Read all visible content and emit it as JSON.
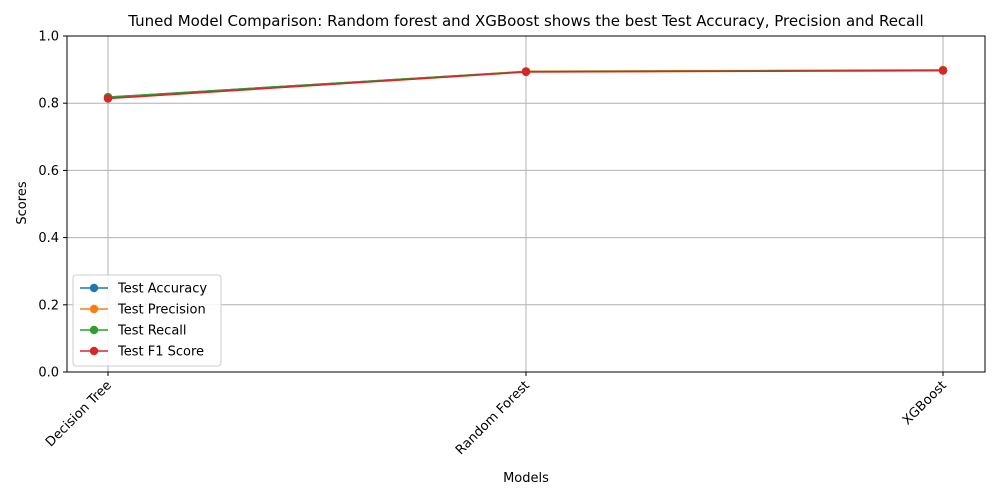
{
  "chart_data": {
    "type": "line",
    "title": "Tuned Model Comparison: Random forest and XGBoost shows the best Test Accuracy, Precision and Recall",
    "xlabel": "Models",
    "ylabel": "Scores",
    "categories": [
      "Decision Tree",
      "Random Forest",
      "XGBoost"
    ],
    "ylim": [
      0.0,
      1.0
    ],
    "yticks": [
      "0.0",
      "0.2",
      "0.4",
      "0.6",
      "0.8",
      "1.0"
    ],
    "grid": true,
    "legend_position": "lower-left",
    "series": [
      {
        "name": "Test Accuracy",
        "color": "#1f77b4",
        "values": [
          0.818,
          0.894,
          0.898
        ]
      },
      {
        "name": "Test Precision",
        "color": "#ff7f0e",
        "values": [
          0.815,
          0.895,
          0.899
        ]
      },
      {
        "name": "Test Recall",
        "color": "#2ca02c",
        "values": [
          0.818,
          0.894,
          0.898
        ]
      },
      {
        "name": "Test F1 Score",
        "color": "#d62728",
        "values": [
          0.814,
          0.893,
          0.897
        ]
      }
    ]
  }
}
